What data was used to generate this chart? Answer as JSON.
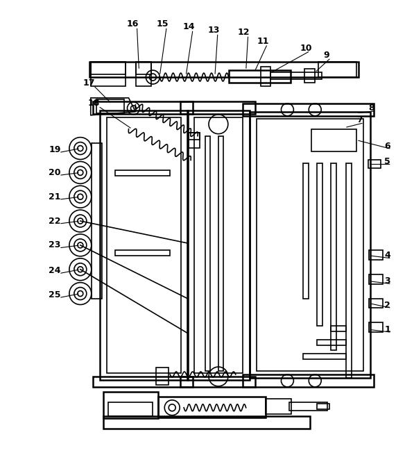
{
  "background_color": "#ffffff",
  "line_color": "#000000",
  "fig_width": 5.84,
  "fig_height": 6.65,
  "dpi": 100,
  "lw": 1.2,
  "lw_thick": 1.8
}
